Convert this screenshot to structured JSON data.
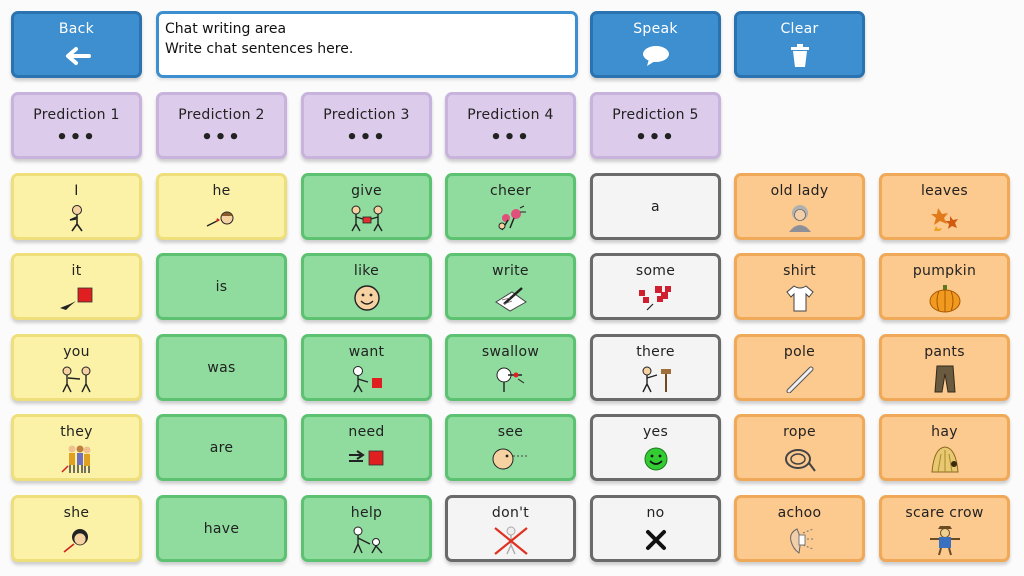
{
  "toolbar": {
    "back_label": "Back",
    "speak_label": "Speak",
    "clear_label": "Clear"
  },
  "chat": {
    "line1": "Chat writing area",
    "line2": "Write chat sentences here."
  },
  "predictions": [
    {
      "label": "Prediction 1",
      "dots": "•••"
    },
    {
      "label": "Prediction 2",
      "dots": "•••"
    },
    {
      "label": "Prediction 3",
      "dots": "•••"
    },
    {
      "label": "Prediction 4",
      "dots": "•••"
    },
    {
      "label": "Prediction 5",
      "dots": "•••"
    }
  ],
  "colors": {
    "pronoun_yellow": "#fbf2a8",
    "verb_green": "#8fdc9e",
    "misc_white": "#f4f4f4",
    "noun_orange": "#fcc98e",
    "prediction_purple": "#dccbea",
    "nav_blue": "#3d8fd0"
  },
  "grid": [
    [
      {
        "label": "I",
        "icon": "point-self-icon"
      },
      {
        "label": "he",
        "icon": "boy-icon"
      },
      {
        "label": "give",
        "icon": "give-icon"
      },
      {
        "label": "cheer",
        "icon": "cheer-icon"
      },
      {
        "label": "a",
        "icon": ""
      },
      {
        "label": "old lady",
        "icon": "old-lady-icon"
      },
      {
        "label": "leaves",
        "icon": "leaves-icon"
      }
    ],
    [
      {
        "label": "it",
        "icon": "point-thing-icon"
      },
      {
        "label": "is",
        "icon": ""
      },
      {
        "label": "like",
        "icon": "smile-face-icon"
      },
      {
        "label": "write",
        "icon": "write-icon"
      },
      {
        "label": "some",
        "icon": "some-icon"
      },
      {
        "label": "shirt",
        "icon": "shirt-icon"
      },
      {
        "label": "pumpkin",
        "icon": "pumpkin-icon"
      }
    ],
    [
      {
        "label": "you",
        "icon": "you-icon"
      },
      {
        "label": "was",
        "icon": ""
      },
      {
        "label": "want",
        "icon": "want-icon"
      },
      {
        "label": "swallow",
        "icon": "swallow-icon"
      },
      {
        "label": "there",
        "icon": "there-icon"
      },
      {
        "label": "pole",
        "icon": "pole-icon"
      },
      {
        "label": "pants",
        "icon": "pants-icon"
      }
    ],
    [
      {
        "label": "they",
        "icon": "group-icon"
      },
      {
        "label": "are",
        "icon": ""
      },
      {
        "label": "need",
        "icon": "need-icon"
      },
      {
        "label": "see",
        "icon": "see-icon"
      },
      {
        "label": "yes",
        "icon": "yes-face-icon"
      },
      {
        "label": "rope",
        "icon": "rope-icon"
      },
      {
        "label": "hay",
        "icon": "hay-icon"
      }
    ],
    [
      {
        "label": "she",
        "icon": "girl-icon"
      },
      {
        "label": "have",
        "icon": ""
      },
      {
        "label": "help",
        "icon": "help-icon"
      },
      {
        "label": "don't",
        "icon": "dont-icon"
      },
      {
        "label": "no",
        "icon": "x-mark-icon"
      },
      {
        "label": "achoo",
        "icon": "sneeze-icon"
      },
      {
        "label": "scare crow",
        "icon": "scarecrow-icon"
      }
    ]
  ]
}
